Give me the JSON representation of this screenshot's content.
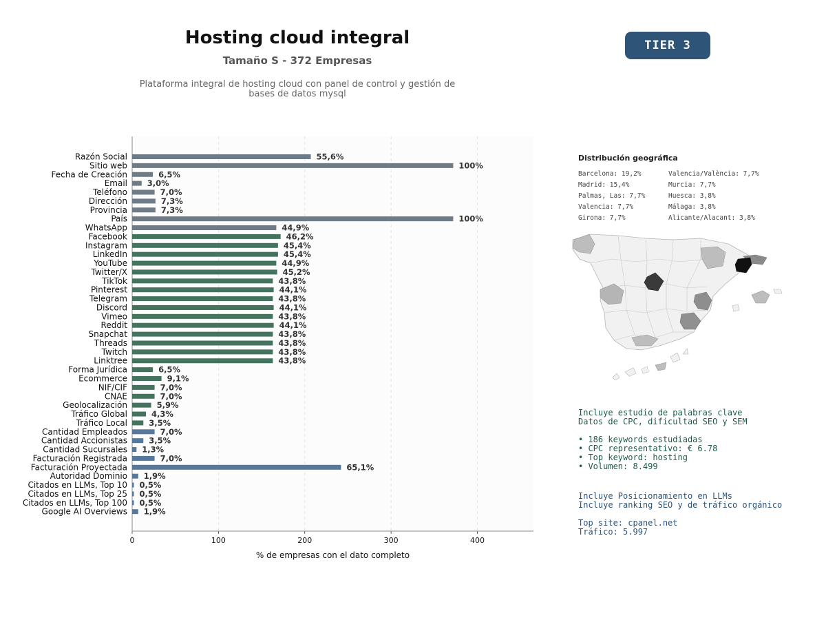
{
  "header": {
    "title": "Hosting cloud integral",
    "subtitle": "Tamaño S - 372 Empresas",
    "description_line1": "Plataforma integral de hosting cloud con panel de control y gestión de",
    "description_line2": "bases de datos mysql",
    "tier_badge": "TIER 3"
  },
  "chart_data": {
    "type": "bar",
    "orientation": "horizontal",
    "xlabel": "% de empresas con el dato completo",
    "xlim": [
      0,
      465
    ],
    "xticks": [
      0,
      100,
      200,
      300,
      400
    ],
    "grid": true,
    "colors": {
      "gray": "#6f7b86",
      "green": "#44735e",
      "blue": "#56789a"
    },
    "categories": [
      "Razón Social",
      "Sitio web",
      "Fecha de Creación",
      "Email",
      "Teléfono",
      "Dirección",
      "Provincia",
      "País",
      "WhatsApp",
      "Facebook",
      "Instagram",
      "LinkedIn",
      "YouTube",
      "Twitter/X",
      "TikTok",
      "Pinterest",
      "Telegram",
      "Discord",
      "Vimeo",
      "Reddit",
      "Snapchat",
      "Threads",
      "Twitch",
      "Linktree",
      "Forma Jurídica",
      "Ecommerce",
      "NIF/CIF",
      "CNAE",
      "Geolocalización",
      "Tráfico Global",
      "Tráfico Local",
      "Cantidad Empleados",
      "Cantidad Accionistas",
      "Cantidad Sucursales",
      "Facturación Registrada",
      "Facturación Proyectada",
      "Autoridad Dominio",
      "Citados en LLMs, Top 10",
      "Citados en LLMs, Top 25",
      "Citados en LLMs, Top 100",
      "Google AI Overviews"
    ],
    "values": [
      207,
      372,
      24,
      11,
      26,
      27,
      27,
      372,
      167,
      172,
      169,
      169,
      167,
      168,
      163,
      164,
      163,
      164,
      163,
      164,
      163,
      163,
      163,
      163,
      24,
      34,
      26,
      26,
      22,
      16,
      13,
      26,
      13,
      5,
      26,
      242,
      7,
      2,
      2,
      2,
      7
    ],
    "labels": [
      "55,6%",
      "100%",
      "6,5%",
      "3,0%",
      "7,0%",
      "7,3%",
      "7,3%",
      "100%",
      "44,9%",
      "46,2%",
      "45,4%",
      "45,4%",
      "44,9%",
      "45,2%",
      "43,8%",
      "44,1%",
      "43,8%",
      "44,1%",
      "43,8%",
      "44,1%",
      "43,8%",
      "43,8%",
      "43,8%",
      "43,8%",
      "6,5%",
      "9,1%",
      "7,0%",
      "7,0%",
      "5,9%",
      "4,3%",
      "3,5%",
      "7,0%",
      "3,5%",
      "1,3%",
      "7,0%",
      "65,1%",
      "1,9%",
      "0,5%",
      "0,5%",
      "0,5%",
      "1,9%"
    ],
    "groups": [
      "gray",
      "gray",
      "gray",
      "gray",
      "gray",
      "gray",
      "gray",
      "gray",
      "gray",
      "green",
      "green",
      "green",
      "green",
      "green",
      "green",
      "green",
      "green",
      "green",
      "green",
      "green",
      "green",
      "green",
      "green",
      "green",
      "green",
      "green",
      "green",
      "green",
      "green",
      "green",
      "green",
      "blue",
      "blue",
      "blue",
      "blue",
      "blue",
      "blue",
      "blue",
      "blue",
      "blue",
      "blue"
    ]
  },
  "geo": {
    "title": "Distribución geográfica",
    "left_column": [
      "Barcelona: 19,2%",
      "Madrid: 15,4%",
      "Palmas, Las: 7,7%",
      "Valencia: 7,7%",
      "Girona: 7,7%"
    ],
    "right_column": [
      "Valencia/València: 7,7%",
      "Murcia: 7,7%",
      "Huesca: 3,8%",
      "Málaga: 3,8%",
      "Alicante/Alacant: 3,8%"
    ]
  },
  "keywords": {
    "heading1": "Incluye estudio de palabras clave",
    "heading2": "Datos de CPC, dificultad SEO y SEM",
    "bullet1": "• 186 keywords estudiadas",
    "bullet2": "• CPC representativo: € 6.78",
    "bullet3": "• Top keyword: hosting",
    "bullet4": "• Volumen: 8.499"
  },
  "llm": {
    "heading1": "Incluye Posicionamiento en LLMs",
    "heading2": "Incluye ranking SEO y de tráfico orgánico",
    "top_site": "Top site: cpanel.net",
    "traffic": "Tráfico: 5.997"
  }
}
